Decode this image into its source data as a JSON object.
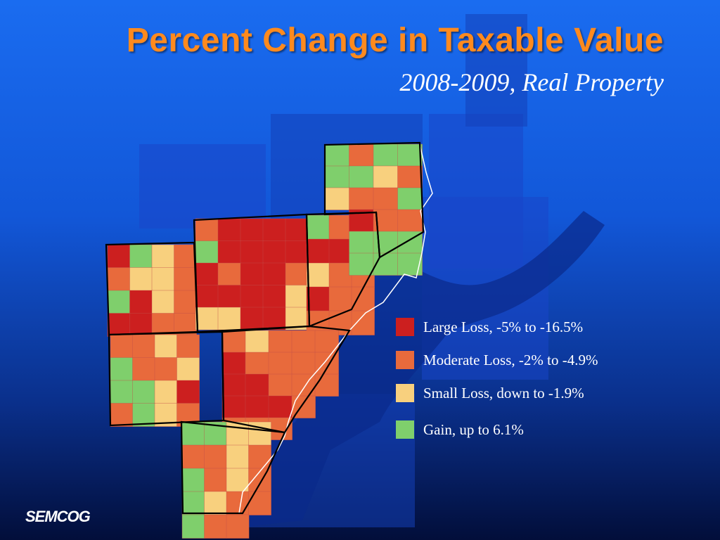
{
  "slide": {
    "title": "Percent Change in Taxable Value",
    "subtitle": "2008-2009, Real Property"
  },
  "map": {
    "land_colors": [
      "#1a45c8",
      "#1440b8"
    ],
    "water_color": "#0a2a8a",
    "categories": {
      "large_loss": "#cc1f1f",
      "moderate_loss": "#e86a3c",
      "small_loss": "#f8d07e",
      "gain": "#7fcf6c"
    },
    "county_border_color": "#000000"
  },
  "legend": {
    "items": [
      {
        "key": "large_loss",
        "label": "Large Loss, -5% to -16.5%",
        "color": "#cc1f1f"
      },
      {
        "key": "moderate_loss",
        "label": "Moderate Loss, -2% to -4.9%",
        "color": "#e86a3c"
      },
      {
        "key": "small_loss",
        "label": "Small Loss, down to -1.9%",
        "color": "#f8d07e"
      },
      {
        "key": "gain",
        "label": "Gain, up to 6.1%",
        "color": "#7fcf6c"
      }
    ]
  },
  "logo": {
    "text": "SEMCOG"
  }
}
